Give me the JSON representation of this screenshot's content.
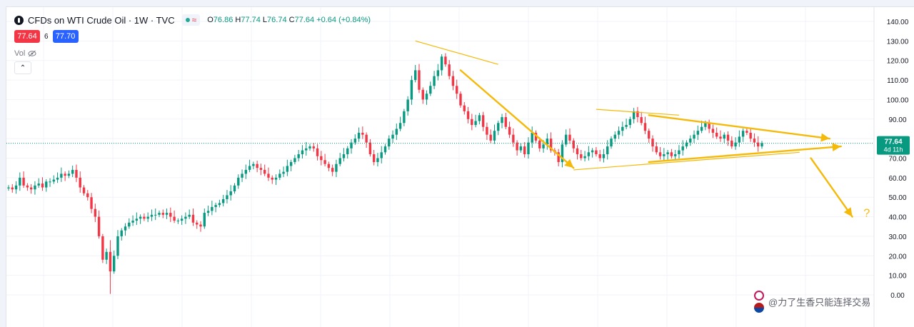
{
  "header": {
    "title": "CFDs on WTI Crude Oil · 1W · TVC",
    "ohlc": {
      "o_label": "O",
      "o": "76.86",
      "h_label": "H",
      "h": "77.74",
      "l_label": "L",
      "l": "76.74",
      "c_label": "C",
      "c": "77.64",
      "change": "+0.64 (+0.84%)"
    },
    "status_icon": "market-open-dot",
    "wave_glyph": "≈"
  },
  "trade": {
    "sell": "77.64",
    "spread": "6",
    "buy": "77.70"
  },
  "volume": {
    "label": "Vol",
    "icon": "eye-off-icon"
  },
  "collapse": {
    "glyph": "⌃"
  },
  "price_tag": {
    "price": "77.64",
    "countdown": "4d 11h"
  },
  "watermark": {
    "text": "@力了生香只能连择交易"
  },
  "colors": {
    "up": "#089981",
    "down": "#f23645",
    "arrow": "#f5b90a",
    "tag": "#089981",
    "dotted_line": "#089981"
  },
  "chart_data": {
    "type": "candlestick",
    "title": "CFDs on WTI Crude Oil · 1W · TVC",
    "ylim": [
      0,
      140
    ],
    "yticks": [
      "140.00",
      "130.00",
      "120.00",
      "110.00",
      "100.00",
      "90.00",
      "80.00",
      "70.00",
      "60.00",
      "50.00",
      "40.00",
      "30.00",
      "20.00",
      "10.00",
      "0.00"
    ],
    "ytick_values": [
      140,
      130,
      120,
      110,
      100,
      90,
      80,
      70,
      60,
      50,
      40,
      30,
      20,
      10,
      0
    ],
    "last_price": 77.64,
    "closes": [
      55,
      54,
      56,
      60,
      56,
      55,
      54,
      56,
      57,
      55,
      58,
      58,
      59,
      60,
      62,
      61,
      62,
      64,
      60,
      55,
      52,
      50,
      44,
      40,
      30,
      18,
      22,
      12,
      20,
      30,
      33,
      35,
      37,
      38,
      39,
      40,
      39,
      40,
      41,
      41,
      42,
      41,
      42,
      40,
      38,
      38,
      39,
      40,
      41,
      37,
      36,
      35,
      42,
      43,
      45,
      46,
      47,
      49,
      51,
      53,
      56,
      60,
      62,
      64,
      66,
      67,
      65,
      64,
      62,
      60,
      59,
      60,
      62,
      63,
      66,
      68,
      70,
      72,
      74,
      75,
      76,
      75,
      71,
      69,
      67,
      65,
      63,
      67,
      70,
      72,
      75,
      78,
      80,
      83,
      82,
      78,
      72,
      68,
      70,
      73,
      76,
      80,
      82,
      85,
      88,
      94,
      100,
      110,
      115,
      105,
      100,
      103,
      107,
      112,
      115,
      122,
      118,
      112,
      107,
      103,
      97,
      94,
      90,
      87,
      89,
      92,
      86,
      82,
      79,
      84,
      88,
      91,
      86,
      82,
      78,
      74,
      76,
      72,
      78,
      83,
      79,
      75,
      77,
      80,
      74,
      73,
      68,
      77,
      82,
      79,
      75,
      72,
      70,
      71,
      73,
      74,
      72,
      70,
      72,
      76,
      80,
      82,
      84,
      86,
      87,
      90,
      94,
      91,
      88,
      84,
      80,
      76,
      73,
      71,
      72,
      73,
      71,
      72,
      74,
      76,
      78,
      80,
      82,
      84,
      86,
      88,
      85,
      83,
      81,
      80,
      82,
      79,
      76,
      78,
      81,
      84,
      83,
      80,
      78,
      76,
      77.64
    ],
    "annotations": {
      "question_mark": "?",
      "arrows": [
        {
          "from": [
            207,
            131
          ],
          "to": [
            290,
            69
          ]
        },
        {
          "from": [
            318,
            96
          ],
          "to": [
            409,
            80
          ]
        },
        {
          "from": [
            293,
            66
          ],
          "to": [
            412,
            77
          ]
        },
        {
          "from": [
            403,
            74
          ],
          "to": [
            419,
            40
          ]
        }
      ]
    }
  }
}
